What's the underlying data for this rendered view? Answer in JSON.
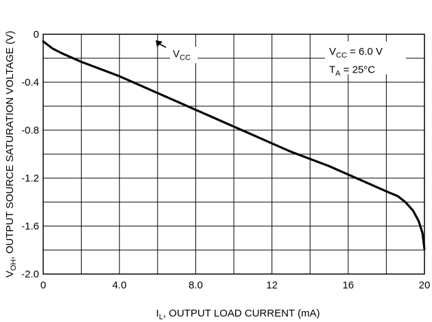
{
  "chart_data": {
    "type": "line",
    "xlabel": {
      "text": "I",
      "sub": "L",
      "rest": ", OUTPUT LOAD CURRENT (mA)"
    },
    "ylabel": {
      "text": "V",
      "sub": "OH",
      "rest": ", OUTPUT SOURCE SATURATION VOLTAGE (V)"
    },
    "xlim": [
      0,
      20
    ],
    "ylim": [
      -2.0,
      0
    ],
    "x_gridlines": [
      0,
      2,
      4,
      6,
      8,
      10,
      12,
      14,
      16,
      18,
      20
    ],
    "y_gridlines": [
      -2.0,
      -1.8,
      -1.6,
      -1.4,
      -1.2,
      -1.0,
      -0.8,
      -0.6,
      -0.4,
      -0.2,
      0
    ],
    "x_ticks": [
      {
        "value": 0,
        "label": "0"
      },
      {
        "value": 4,
        "label": "4.0"
      },
      {
        "value": 8,
        "label": "8.0"
      },
      {
        "value": 12,
        "label": "12"
      },
      {
        "value": 16,
        "label": "16"
      },
      {
        "value": 20,
        "label": "20"
      }
    ],
    "y_ticks": [
      {
        "value": 0,
        "label": "0"
      },
      {
        "value": -0.4,
        "label": "-0.4"
      },
      {
        "value": -0.8,
        "label": "-0.8"
      },
      {
        "value": -1.2,
        "label": "-1.2"
      },
      {
        "value": -1.6,
        "label": "-1.6"
      },
      {
        "value": -2.0,
        "label": "-2.0"
      }
    ],
    "grid": true,
    "series": [
      {
        "color": "#000000",
        "points": [
          [
            0,
            -0.06
          ],
          [
            0.5,
            -0.12
          ],
          [
            1,
            -0.16
          ],
          [
            2,
            -0.23
          ],
          [
            3,
            -0.29
          ],
          [
            4,
            -0.35
          ],
          [
            5,
            -0.42
          ],
          [
            6,
            -0.49
          ],
          [
            7,
            -0.56
          ],
          [
            8,
            -0.63
          ],
          [
            9,
            -0.7
          ],
          [
            10,
            -0.77
          ],
          [
            11,
            -0.84
          ],
          [
            12,
            -0.91
          ],
          [
            13,
            -0.98
          ],
          [
            14,
            -1.04
          ],
          [
            15,
            -1.1
          ],
          [
            16,
            -1.17
          ],
          [
            17,
            -1.24
          ],
          [
            18,
            -1.31
          ],
          [
            18.6,
            -1.35
          ],
          [
            19.0,
            -1.4
          ],
          [
            19.4,
            -1.47
          ],
          [
            19.7,
            -1.56
          ],
          [
            19.9,
            -1.66
          ],
          [
            20,
            -1.79
          ]
        ]
      }
    ],
    "annotations": {
      "vcc_arrow": {
        "text": "V",
        "sub": "CC",
        "x": 6.8,
        "y": -0.19,
        "arrow_to": [
          5.9,
          -0.05
        ]
      },
      "conditions": [
        {
          "text": "V",
          "sub": "CC",
          "rest": " = 6.0 V",
          "x": 15.0,
          "y": -0.16
        },
        {
          "text": "T",
          "sub": "A",
          "rest": " = 25°C",
          "x": 15.0,
          "y": -0.31
        }
      ]
    }
  }
}
